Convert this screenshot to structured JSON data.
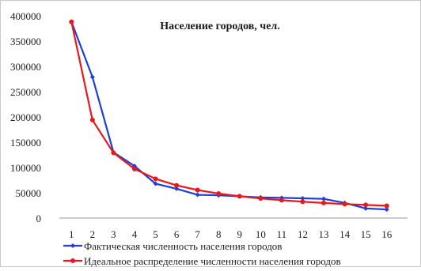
{
  "chart_data": {
    "type": "line",
    "title": "Население городов, чел.",
    "xlabel": "",
    "ylabel": "",
    "categories": [
      "1",
      "2",
      "3",
      "4",
      "5",
      "6",
      "7",
      "8",
      "9",
      "10",
      "11",
      "12",
      "13",
      "14",
      "15",
      "16"
    ],
    "y_ticks": [
      "0",
      "50000",
      "100000",
      "150000",
      "200000",
      "250000",
      "300000",
      "350000",
      "400000"
    ],
    "ylim": [
      0,
      400000
    ],
    "grid": false,
    "legend_position": "bottom",
    "series": [
      {
        "name": "Фактическая численность населения городов",
        "color": "#1f3fd6",
        "marker": "diamond",
        "values": [
          388000,
          279000,
          130000,
          103000,
          68000,
          58000,
          46000,
          45000,
          43000,
          41000,
          40000,
          39000,
          38000,
          30000,
          19000,
          17000
        ]
      },
      {
        "name": "Идеальное распределение численности населения городов",
        "color": "#e8191a",
        "marker": "circle",
        "values": [
          388000,
          194000,
          129000,
          97000,
          77600,
          64700,
          55400,
          48500,
          43100,
          38800,
          35300,
          32300,
          29800,
          27700,
          25900,
          24300
        ]
      }
    ]
  }
}
